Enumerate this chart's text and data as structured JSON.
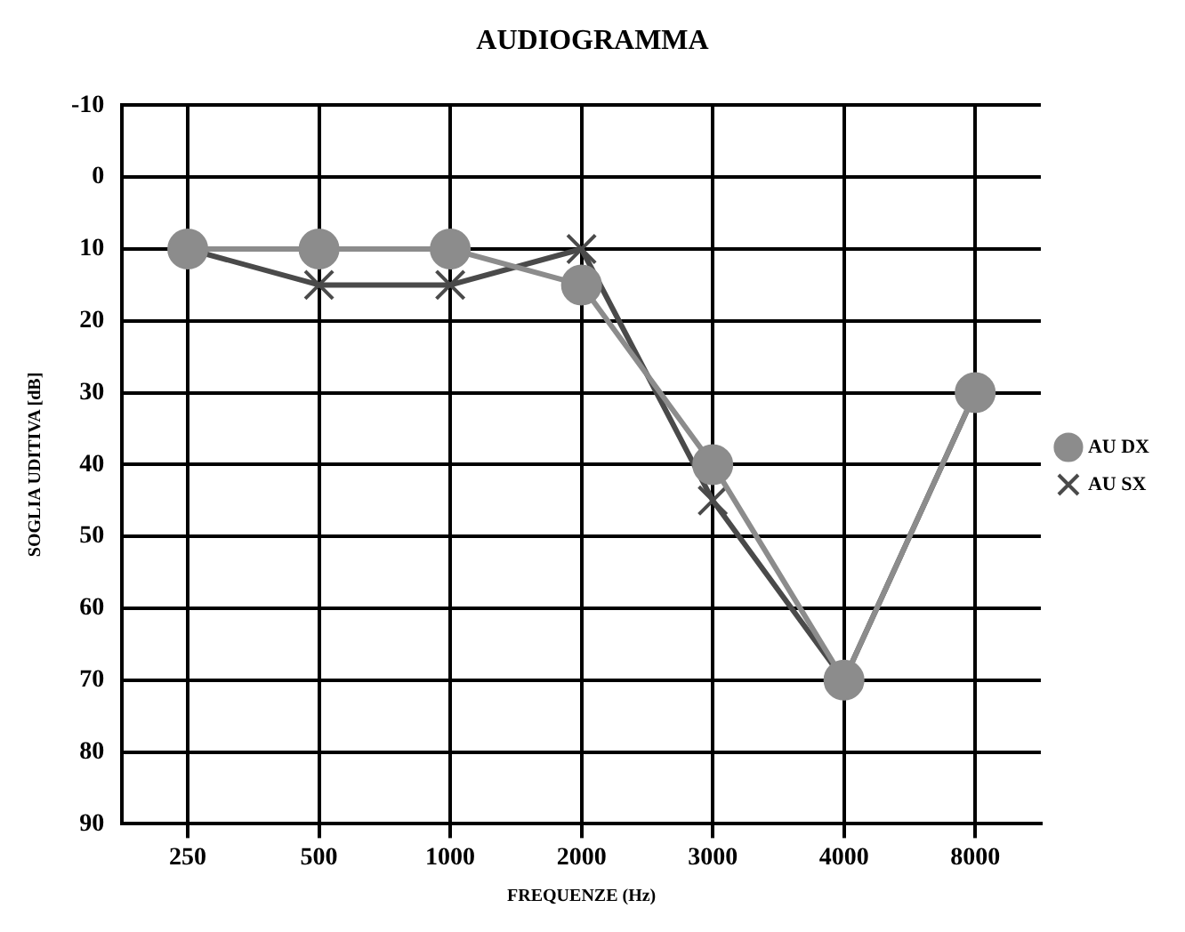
{
  "chart_data": {
    "type": "line",
    "title": "AUDIOGRAMMA",
    "xlabel": "FREQUENZE (Hz)",
    "ylabel": "SOGLIA UDITIVA [dB]",
    "categories": [
      "250",
      "500",
      "1000",
      "2000",
      "3000",
      "4000",
      "8000"
    ],
    "series": [
      {
        "name": "AU DX",
        "color": "#8c8c8c",
        "marker": "circle",
        "values": [
          10,
          10,
          10,
          15,
          40,
          70,
          30
        ]
      },
      {
        "name": "AU SX",
        "color": "#4a4a4a",
        "marker": "cross",
        "values": [
          10,
          15,
          15,
          10,
          45,
          70,
          30
        ]
      }
    ],
    "ylim": [
      90,
      -10
    ],
    "yticks": [
      -10,
      0,
      10,
      20,
      30,
      40,
      50,
      60,
      70,
      80,
      90
    ],
    "grid": true,
    "legend": "right"
  }
}
